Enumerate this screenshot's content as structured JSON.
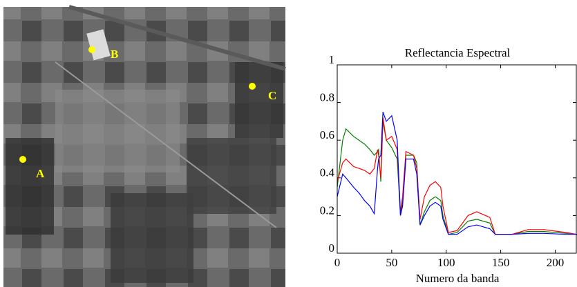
{
  "image": {
    "points": [
      {
        "label": "A"
      },
      {
        "label": "B"
      },
      {
        "label": "C"
      }
    ]
  },
  "chart_data": {
    "type": "line",
    "title": "Reflectancia Espectral",
    "x_label": "Numero da banda",
    "x": [
      0,
      5,
      8,
      15,
      20,
      25,
      30,
      34,
      37,
      38,
      40,
      42,
      45,
      50,
      55,
      58,
      60,
      63,
      70,
      73,
      76,
      80,
      85,
      90,
      95,
      97,
      102,
      110,
      120,
      128,
      140,
      145,
      160,
      175,
      190,
      210,
      220
    ],
    "series": [
      {
        "color": "#008000",
        "values": [
          0.35,
          0.6,
          0.66,
          0.62,
          0.6,
          0.58,
          0.55,
          0.52,
          0.54,
          0.55,
          0.38,
          0.7,
          0.6,
          0.56,
          0.5,
          0.2,
          0.28,
          0.52,
          0.52,
          0.48,
          0.15,
          0.22,
          0.28,
          0.3,
          0.28,
          0.2,
          0.1,
          0.11,
          0.17,
          0.18,
          0.16,
          0.1,
          0.1,
          0.115,
          0.115,
          0.105,
          0.1
        ]
      },
      {
        "color": "#ff0000",
        "values": [
          0.38,
          0.48,
          0.5,
          0.46,
          0.45,
          0.44,
          0.42,
          0.45,
          0.55,
          0.52,
          0.4,
          0.72,
          0.6,
          0.62,
          0.55,
          0.22,
          0.3,
          0.54,
          0.52,
          0.45,
          0.18,
          0.3,
          0.36,
          0.38,
          0.35,
          0.25,
          0.11,
          0.12,
          0.2,
          0.22,
          0.19,
          0.1,
          0.1,
          0.125,
          0.125,
          0.11,
          0.1
        ]
      },
      {
        "color": "#0000ff",
        "values": [
          0.3,
          0.42,
          0.4,
          0.35,
          0.32,
          0.28,
          0.25,
          0.21,
          0.45,
          0.5,
          0.52,
          0.75,
          0.7,
          0.73,
          0.6,
          0.2,
          0.25,
          0.5,
          0.5,
          0.42,
          0.15,
          0.2,
          0.25,
          0.27,
          0.25,
          0.18,
          0.1,
          0.1,
          0.14,
          0.15,
          0.13,
          0.1,
          0.1,
          0.105,
          0.105,
          0.1,
          0.1
        ]
      }
    ],
    "xlim": [
      0,
      220
    ],
    "ylim": [
      0,
      1
    ],
    "xticks": [
      0,
      50,
      100,
      150,
      200
    ],
    "yticks": [
      0,
      0.2,
      0.4,
      0.6,
      0.8,
      1
    ]
  }
}
